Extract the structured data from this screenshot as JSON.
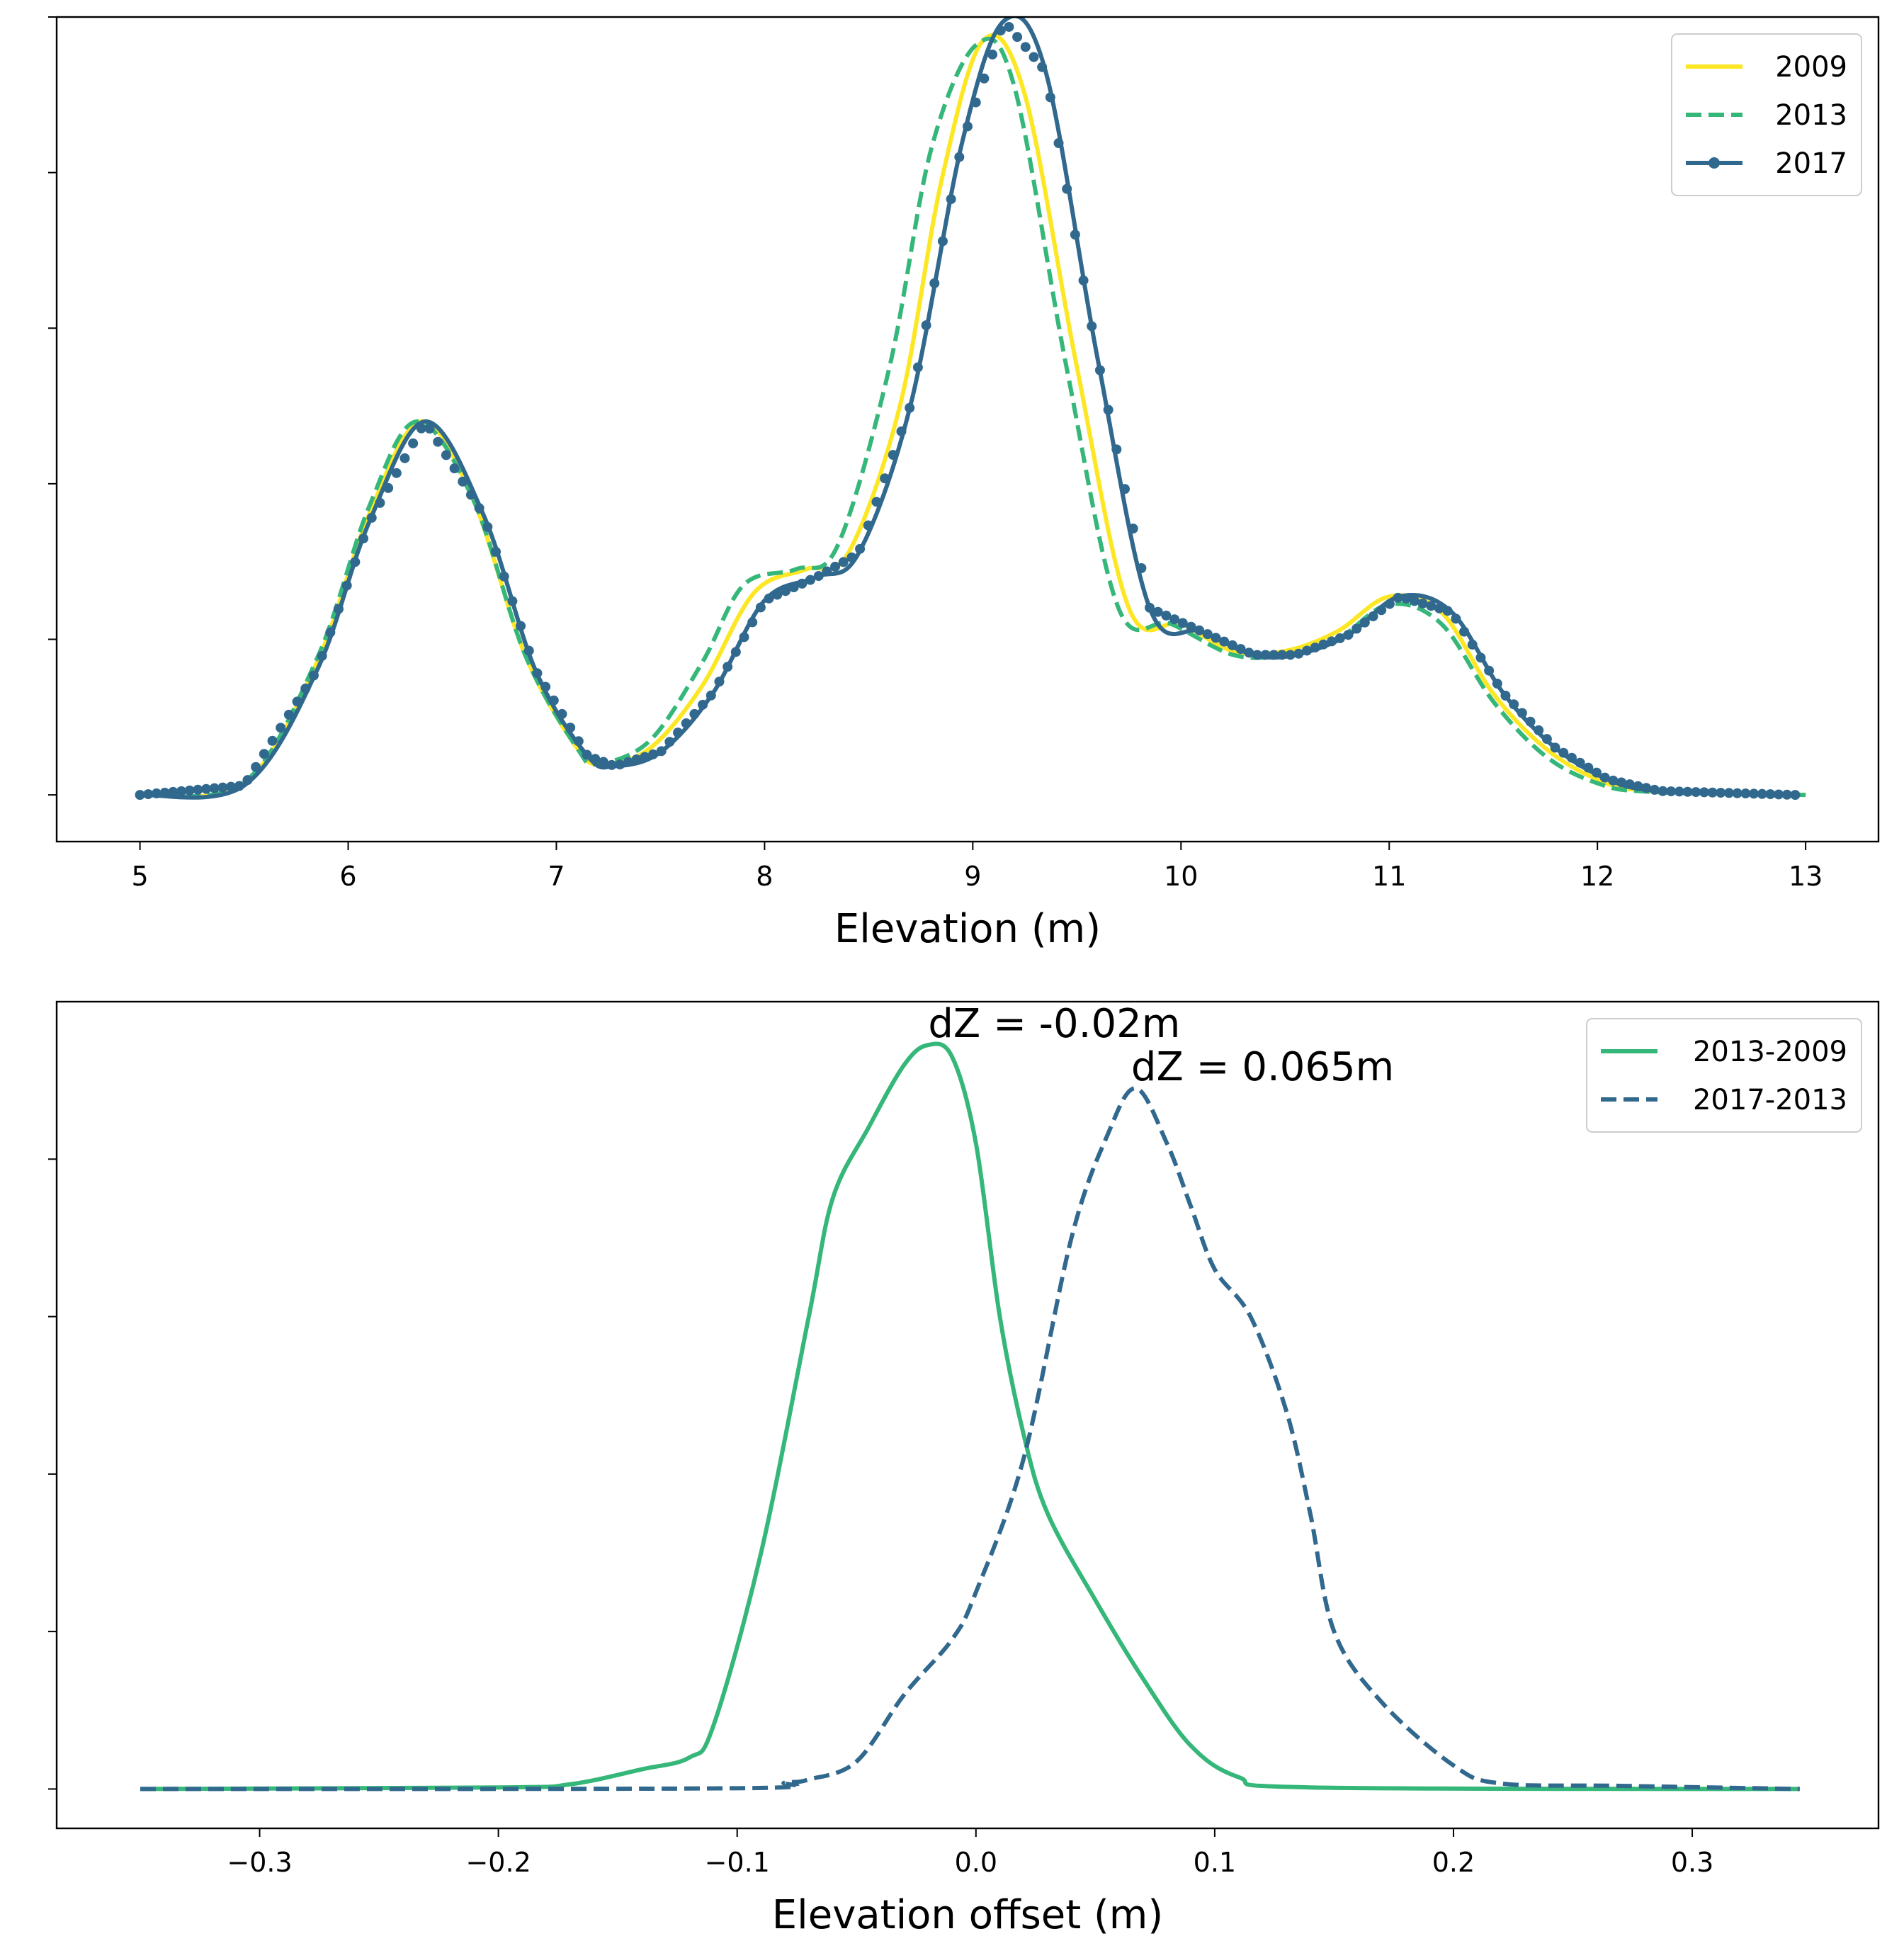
{
  "chart_data": [
    {
      "type": "line",
      "title": "",
      "xlabel": "Elevation (m)",
      "ylabel": "",
      "xlim": [
        4.6,
        13.35
      ],
      "ylim": [
        -0.06,
        1.0
      ],
      "xticks": [
        5,
        6,
        7,
        8,
        9,
        10,
        11,
        12,
        13
      ],
      "xtick_labels": [
        "5",
        "6",
        "7",
        "8",
        "9",
        "10",
        "11",
        "12",
        "13"
      ],
      "yticks": [
        0,
        0.2,
        0.4,
        0.6,
        0.8,
        1.0
      ],
      "ytick_labels": [
        "",
        "",
        "",
        "",
        "",
        ""
      ],
      "legend": {
        "position": "top-right",
        "entries": [
          "2009",
          "2013",
          "2017"
        ]
      },
      "series": [
        {
          "name": "2009",
          "color": "#fde725",
          "style": "solid",
          "marker": "none",
          "points": [
            [
              5.0,
              0.0
            ],
            [
              5.5,
              0.015
            ],
            [
              5.85,
              0.17
            ],
            [
              6.1,
              0.36
            ],
            [
              6.35,
              0.48
            ],
            [
              6.6,
              0.38
            ],
            [
              6.85,
              0.18
            ],
            [
              7.1,
              0.06
            ],
            [
              7.22,
              0.04
            ],
            [
              7.45,
              0.06
            ],
            [
              7.7,
              0.14
            ],
            [
              7.95,
              0.26
            ],
            [
              8.2,
              0.29
            ],
            [
              8.4,
              0.31
            ],
            [
              8.65,
              0.5
            ],
            [
              8.85,
              0.79
            ],
            [
              9.05,
              0.97
            ],
            [
              9.25,
              0.9
            ],
            [
              9.5,
              0.55
            ],
            [
              9.75,
              0.24
            ],
            [
              10.0,
              0.22
            ],
            [
              10.25,
              0.185
            ],
            [
              10.5,
              0.185
            ],
            [
              10.75,
              0.21
            ],
            [
              11.0,
              0.255
            ],
            [
              11.25,
              0.235
            ],
            [
              11.5,
              0.13
            ],
            [
              11.75,
              0.06
            ],
            [
              12.0,
              0.02
            ],
            [
              12.25,
              0.005
            ],
            [
              13.0,
              0.0
            ]
          ]
        },
        {
          "name": "2013",
          "color": "#35b779",
          "style": "dashed",
          "marker": "none",
          "points": [
            [
              5.0,
              0.0
            ],
            [
              5.5,
              0.016
            ],
            [
              5.85,
              0.175
            ],
            [
              6.1,
              0.37
            ],
            [
              6.33,
              0.48
            ],
            [
              6.6,
              0.38
            ],
            [
              6.85,
              0.18
            ],
            [
              7.1,
              0.06
            ],
            [
              7.2,
              0.04
            ],
            [
              7.45,
              0.07
            ],
            [
              7.7,
              0.17
            ],
            [
              7.9,
              0.27
            ],
            [
              8.15,
              0.29
            ],
            [
              8.35,
              0.32
            ],
            [
              8.6,
              0.55
            ],
            [
              8.8,
              0.83
            ],
            [
              9.02,
              0.965
            ],
            [
              9.2,
              0.91
            ],
            [
              9.45,
              0.55
            ],
            [
              9.7,
              0.24
            ],
            [
              9.95,
              0.22
            ],
            [
              10.25,
              0.18
            ],
            [
              10.5,
              0.18
            ],
            [
              10.75,
              0.2
            ],
            [
              11.0,
              0.245
            ],
            [
              11.25,
              0.22
            ],
            [
              11.5,
              0.12
            ],
            [
              11.75,
              0.05
            ],
            [
              12.0,
              0.015
            ],
            [
              12.25,
              0.004
            ],
            [
              13.0,
              0.0
            ]
          ]
        },
        {
          "name": "2017",
          "color": "#31688e",
          "style": "solid",
          "marker": "circle",
          "points": [
            [
              5.0,
              0.0
            ],
            [
              5.5,
              0.012
            ],
            [
              5.85,
              0.16
            ],
            [
              6.1,
              0.35
            ],
            [
              6.37,
              0.48
            ],
            [
              6.65,
              0.36
            ],
            [
              6.9,
              0.16
            ],
            [
              7.15,
              0.05
            ],
            [
              7.28,
              0.037
            ],
            [
              7.5,
              0.055
            ],
            [
              7.75,
              0.13
            ],
            [
              8.0,
              0.25
            ],
            [
              8.25,
              0.28
            ],
            [
              8.45,
              0.31
            ],
            [
              8.7,
              0.5
            ],
            [
              8.95,
              0.84
            ],
            [
              9.15,
              0.995
            ],
            [
              9.35,
              0.93
            ],
            [
              9.6,
              0.56
            ],
            [
              9.85,
              0.24
            ],
            [
              10.1,
              0.21
            ],
            [
              10.35,
              0.18
            ],
            [
              10.55,
              0.18
            ],
            [
              10.8,
              0.205
            ],
            [
              11.05,
              0.255
            ],
            [
              11.3,
              0.235
            ],
            [
              11.55,
              0.13
            ],
            [
              11.8,
              0.06
            ],
            [
              12.05,
              0.02
            ],
            [
              12.3,
              0.005
            ],
            [
              12.95,
              0.0
            ]
          ]
        }
      ]
    },
    {
      "type": "line",
      "title": "",
      "xlabel": "Elevation offset (m)",
      "ylabel": "",
      "xlim": [
        -0.385,
        0.378
      ],
      "ylim": [
        -0.05,
        1.0
      ],
      "xticks": [
        -0.3,
        -0.2,
        -0.1,
        0.0,
        0.1,
        0.2,
        0.3
      ],
      "xtick_labels": [
        "−0.3",
        "−0.2",
        "−0.1",
        "0.0",
        "0.1",
        "0.2",
        "0.3"
      ],
      "yticks": [
        0,
        0.2,
        0.4,
        0.6,
        0.8
      ],
      "ytick_labels": [
        "",
        "",
        "",
        "",
        ""
      ],
      "legend": {
        "position": "top-right",
        "entries": [
          "2013-2009",
          "2017-2013"
        ]
      },
      "annotations": [
        {
          "text": "dZ = -0.02m",
          "x": -0.02,
          "y": 0.955
        },
        {
          "text": "dZ = 0.065m",
          "x": 0.065,
          "y": 0.9
        }
      ],
      "series": [
        {
          "name": "2013-2009",
          "color": "#35b779",
          "style": "solid",
          "points": [
            [
              -0.35,
              0.0
            ],
            [
              -0.2,
              0.002
            ],
            [
              -0.17,
              0.006
            ],
            [
              -0.14,
              0.025
            ],
            [
              -0.12,
              0.04
            ],
            [
              -0.11,
              0.08
            ],
            [
              -0.09,
              0.3
            ],
            [
              -0.07,
              0.6
            ],
            [
              -0.06,
              0.75
            ],
            [
              -0.045,
              0.84
            ],
            [
              -0.03,
              0.92
            ],
            [
              -0.02,
              0.945
            ],
            [
              -0.01,
              0.93
            ],
            [
              0.0,
              0.82
            ],
            [
              0.01,
              0.6
            ],
            [
              0.02,
              0.45
            ],
            [
              0.03,
              0.35
            ],
            [
              0.05,
              0.24
            ],
            [
              0.07,
              0.14
            ],
            [
              0.09,
              0.055
            ],
            [
              0.11,
              0.015
            ],
            [
              0.14,
              0.002
            ],
            [
              0.345,
              0.0
            ]
          ]
        },
        {
          "name": "2017-2013",
          "color": "#31688e",
          "style": "dashed",
          "points": [
            [
              -0.35,
              0.0
            ],
            [
              -0.1,
              0.001
            ],
            [
              -0.08,
              0.008
            ],
            [
              -0.07,
              0.012
            ],
            [
              -0.05,
              0.035
            ],
            [
              -0.03,
              0.12
            ],
            [
              -0.01,
              0.19
            ],
            [
              0.0,
              0.25
            ],
            [
              0.02,
              0.42
            ],
            [
              0.04,
              0.7
            ],
            [
              0.055,
              0.83
            ],
            [
              0.067,
              0.89
            ],
            [
              0.08,
              0.82
            ],
            [
              0.09,
              0.74
            ],
            [
              0.1,
              0.66
            ],
            [
              0.115,
              0.6
            ],
            [
              0.13,
              0.48
            ],
            [
              0.14,
              0.35
            ],
            [
              0.15,
              0.2
            ],
            [
              0.17,
              0.11
            ],
            [
              0.2,
              0.03
            ],
            [
              0.22,
              0.007
            ],
            [
              0.27,
              0.004
            ],
            [
              0.345,
              0.0
            ]
          ]
        }
      ]
    }
  ]
}
